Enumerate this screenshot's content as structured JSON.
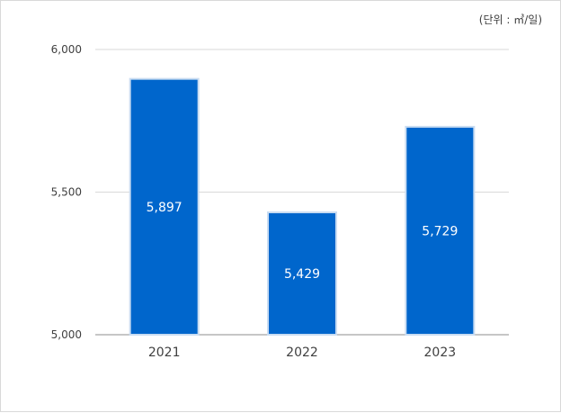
{
  "unit_label": "(단위 : ㎥/일)",
  "chart_data": {
    "type": "bar",
    "categories": [
      "2021",
      "2022",
      "2023"
    ],
    "values": [
      5897,
      5429,
      5729
    ],
    "value_labels": [
      "5,897",
      "5,429",
      "5,729"
    ],
    "ylim": [
      5000,
      6000
    ],
    "yticks": [
      5000,
      5500,
      6000
    ],
    "ytick_labels": [
      "5,000",
      "5,500",
      "6,000"
    ],
    "bar_color": "#0066cc",
    "bar_border_color": "#c9dcf2",
    "grid": true,
    "title": "",
    "xlabel": "",
    "ylabel": ""
  }
}
